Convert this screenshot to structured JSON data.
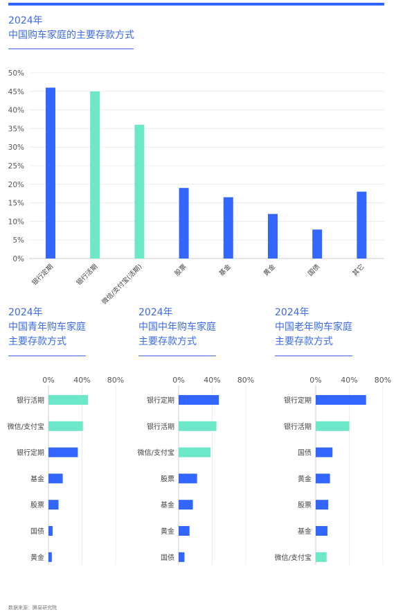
{
  "main": {
    "year": "2024年",
    "title": "中国购车家庭的主要存款方式"
  },
  "source": "数据来源：腾易研究院",
  "colors": {
    "blue": "#3366ff",
    "teal": "#6ce8c8",
    "title": "#3a6ae8"
  },
  "chart_data": [
    {
      "type": "bar",
      "title": "中国购车家庭的主要存款方式",
      "categories": [
        "银行定期",
        "银行活期",
        "微信/支付宝(活期)",
        "股票",
        "基金",
        "黄金",
        "国债",
        "其它"
      ],
      "values": [
        46,
        45,
        36,
        19,
        16.5,
        12,
        7.8,
        18
      ],
      "colors": [
        "#3366ff",
        "#6ce8c8",
        "#6ce8c8",
        "#3366ff",
        "#3366ff",
        "#3366ff",
        "#3366ff",
        "#3366ff"
      ],
      "ylim": [
        0,
        50
      ],
      "yticks": [
        "0%",
        "5%",
        "10%",
        "15%",
        "20%",
        "25%",
        "30%",
        "35%",
        "40%",
        "45%",
        "50%"
      ],
      "grid": true
    },
    {
      "type": "bar",
      "orientation": "horizontal",
      "year": "2024年",
      "title_line1": "中国青年购车家庭",
      "title_line2": "主要存款方式",
      "categories": [
        "银行活期",
        "微信/支付宝",
        "银行定期",
        "基金",
        "股票",
        "国债",
        "黄金"
      ],
      "values": [
        47,
        41,
        35,
        17,
        12,
        5,
        4
      ],
      "colors": [
        "#6ce8c8",
        "#6ce8c8",
        "#3366ff",
        "#3366ff",
        "#3366ff",
        "#3366ff",
        "#3366ff"
      ],
      "xlim": [
        0,
        80
      ],
      "xticks": [
        "0%",
        "40%",
        "80%"
      ]
    },
    {
      "type": "bar",
      "orientation": "horizontal",
      "year": "2024年",
      "title_line1": "中国中年购车家庭",
      "title_line2": "主要存款方式",
      "categories": [
        "银行定期",
        "银行活期",
        "微信/支付宝",
        "股票",
        "基金",
        "黄金",
        "国债"
      ],
      "values": [
        48,
        45,
        38,
        22,
        17,
        13,
        7
      ],
      "colors": [
        "#3366ff",
        "#6ce8c8",
        "#6ce8c8",
        "#3366ff",
        "#3366ff",
        "#3366ff",
        "#3366ff"
      ],
      "xlim": [
        0,
        80
      ],
      "xticks": [
        "0%",
        "40%",
        "80%"
      ]
    },
    {
      "type": "bar",
      "orientation": "horizontal",
      "year": "2024年",
      "title_line1": "中国老年购车家庭",
      "title_line2": "主要存款方式",
      "categories": [
        "银行定期",
        "银行活期",
        "国债",
        "黄金",
        "股票",
        "基金",
        "微信/支付宝"
      ],
      "values": [
        60,
        40,
        20,
        17,
        15,
        14,
        13
      ],
      "colors": [
        "#3366ff",
        "#6ce8c8",
        "#3366ff",
        "#3366ff",
        "#3366ff",
        "#3366ff",
        "#6ce8c8"
      ],
      "xlim": [
        0,
        80
      ],
      "xticks": [
        "0%",
        "40%",
        "80%"
      ]
    }
  ]
}
